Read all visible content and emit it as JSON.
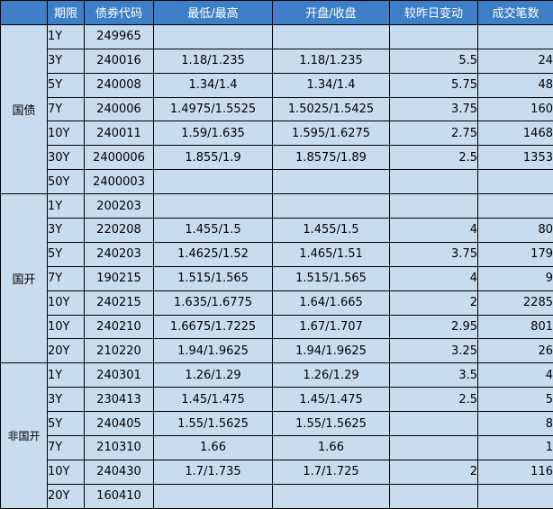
{
  "headers": [
    "",
    "期限",
    "债券代码",
    "最低/最高",
    "开盘/收盘",
    "较昨日变动",
    "成交笔数"
  ],
  "groups": [
    {
      "name": "国债",
      "rows": [
        {
          "term": "1Y",
          "code": "249965",
          "lowhigh": "",
          "openclose": "",
          "change": "",
          "count": ""
        },
        {
          "term": "3Y",
          "code": "240016",
          "lowhigh": "1.18/1.235",
          "openclose": "1.18/1.235",
          "change": "5.5",
          "count": "24"
        },
        {
          "term": "5Y",
          "code": "240008",
          "lowhigh": "1.34/1.4",
          "openclose": "1.34/1.4",
          "change": "5.75",
          "count": "48"
        },
        {
          "term": "7Y",
          "code": "240006",
          "lowhigh": "1.4975/1.5525",
          "openclose": "1.5025/1.5425",
          "change": "3.75",
          "count": "160"
        },
        {
          "term": "10Y",
          "code": "240011",
          "lowhigh": "1.59/1.635",
          "openclose": "1.595/1.6275",
          "change": "2.75",
          "count": "1468"
        },
        {
          "term": "30Y",
          "code": "2400006",
          "lowhigh": "1.855/1.9",
          "openclose": "1.8575/1.89",
          "change": "2.5",
          "count": "1353"
        },
        {
          "term": "50Y",
          "code": "2400003",
          "lowhigh": "",
          "openclose": "",
          "change": "",
          "count": ""
        }
      ]
    },
    {
      "name": "国开",
      "rows": [
        {
          "term": "1Y",
          "code": "200203",
          "lowhigh": "",
          "openclose": "",
          "change": "",
          "count": ""
        },
        {
          "term": "3Y",
          "code": "220208",
          "lowhigh": "1.455/1.5",
          "openclose": "1.455/1.5",
          "change": "4",
          "count": "80"
        },
        {
          "term": "5Y",
          "code": "240203",
          "lowhigh": "1.4625/1.52",
          "openclose": "1.465/1.51",
          "change": "3.75",
          "count": "179"
        },
        {
          "term": "7Y",
          "code": "190215",
          "lowhigh": "1.515/1.565",
          "openclose": "1.515/1.565",
          "change": "4",
          "count": "9"
        },
        {
          "term": "10Y",
          "code": "240215",
          "lowhigh": "1.635/1.6775",
          "openclose": "1.64/1.665",
          "change": "2",
          "count": "2285"
        },
        {
          "term": "10Y",
          "code": "240210",
          "lowhigh": "1.6675/1.7225",
          "openclose": "1.67/1.707",
          "change": "2.95",
          "count": "801"
        },
        {
          "term": "20Y",
          "code": "210220",
          "lowhigh": "1.94/1.9625",
          "openclose": "1.94/1.9625",
          "change": "3.25",
          "count": "26"
        }
      ]
    },
    {
      "name": "非国开",
      "rows": [
        {
          "term": "1Y",
          "code": "240301",
          "lowhigh": "1.26/1.29",
          "openclose": "1.26/1.29",
          "change": "3.5",
          "count": "4"
        },
        {
          "term": "3Y",
          "code": "230413",
          "lowhigh": "1.45/1.475",
          "openclose": "1.45/1.475",
          "change": "2.5",
          "count": "5"
        },
        {
          "term": "5Y",
          "code": "240405",
          "lowhigh": "1.55/1.5625",
          "openclose": "1.55/1.5625",
          "change": "",
          "count": "8"
        },
        {
          "term": "7Y",
          "code": "210310",
          "lowhigh": "1.66",
          "openclose": "1.66",
          "change": "",
          "count": "1"
        },
        {
          "term": "10Y",
          "code": "240430",
          "lowhigh": "1.7/1.735",
          "openclose": "1.7/1.725",
          "change": "2",
          "count": "116"
        },
        {
          "term": "20Y",
          "code": "160410",
          "lowhigh": "",
          "openclose": "",
          "change": "",
          "count": ""
        }
      ]
    }
  ]
}
